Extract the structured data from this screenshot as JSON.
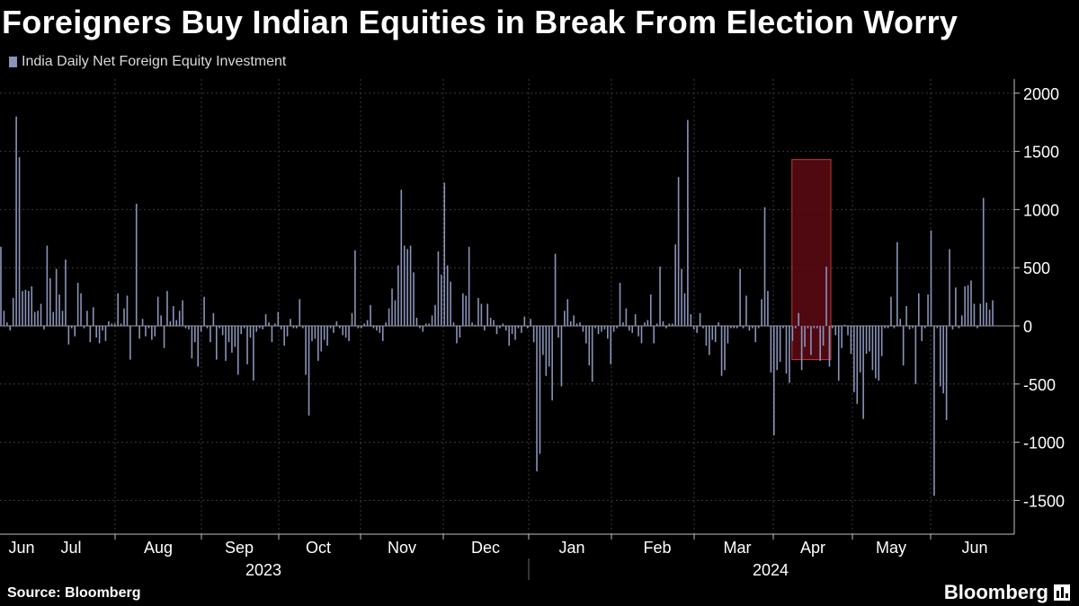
{
  "title": "Foreigners Buy Indian Equities in Break From Election Worry",
  "legend": {
    "label": "India Daily Net Foreign Equity Investment",
    "color": "#8a93b8"
  },
  "source": "Source: Bloomberg",
  "brand": "Bloomberg",
  "colors": {
    "bar": "#8a93b8",
    "highlight_fill": "#5e0a14",
    "highlight_stroke": "#c23a3a",
    "grid": "#3a3a3a",
    "axis": "#bfbfbf"
  },
  "chart_data": {
    "type": "bar",
    "title": "Foreigners Buy Indian Equities in Break From Election Worry",
    "series": [
      {
        "name": "India Daily Net Foreign Equity Investment"
      }
    ],
    "ylim": [
      -1650,
      2050
    ],
    "yticks": [
      2000,
      1500,
      1000,
      500,
      0,
      -500,
      -1000,
      -1500
    ],
    "ytick_labels": [
      "2000",
      "1500",
      "1000",
      "500",
      "0",
      "-500",
      "-1000",
      "-1500"
    ],
    "month_labels": [
      "Jun",
      "Jul",
      "Aug",
      "Sep",
      "Oct",
      "Nov",
      "Dec",
      "Jan",
      "Feb",
      "Mar",
      "Apr",
      "May",
      "Jun"
    ],
    "year_labels": [
      "2023",
      "2024"
    ],
    "highlight_range": {
      "start_index": 258,
      "end_index": 268,
      "ymin": -290,
      "ymax": 1430
    },
    "values": [
      680,
      130,
      30,
      -40,
      240,
      1800,
      1450,
      300,
      310,
      300,
      340,
      120,
      130,
      190,
      -30,
      690,
      410,
      120,
      490,
      270,
      130,
      570,
      -160,
      -20,
      -90,
      370,
      280,
      -20,
      130,
      -140,
      160,
      -100,
      -150,
      -40,
      -130,
      40,
      20,
      20,
      280,
      20,
      150,
      260,
      -290,
      0,
      1050,
      -110,
      60,
      -90,
      -20,
      -120,
      -90,
      250,
      90,
      -190,
      300,
      40,
      170,
      50,
      130,
      220,
      -20,
      -30,
      -280,
      -140,
      -350,
      -50,
      250,
      -20,
      -140,
      110,
      -290,
      -20,
      -80,
      -300,
      -140,
      -230,
      -180,
      -420,
      -70,
      -20,
      -330,
      -100,
      -470,
      -50,
      -20,
      -30,
      100,
      30,
      -140,
      20,
      120,
      -30,
      -170,
      -90,
      60,
      -20,
      -20,
      230,
      -20,
      -420,
      -770,
      -130,
      -110,
      -300,
      -220,
      -120,
      -170,
      -20,
      -60,
      40,
      -20,
      -80,
      -100,
      -130,
      110,
      650,
      -20,
      -20,
      20,
      50,
      180,
      -20,
      -40,
      -60,
      -130,
      30,
      150,
      320,
      220,
      520,
      1170,
      690,
      660,
      690,
      460,
      70,
      -20,
      -50,
      20,
      20,
      90,
      180,
      640,
      440,
      1230,
      520,
      380,
      30,
      -150,
      -100,
      280,
      260,
      680,
      30,
      10,
      240,
      190,
      -40,
      190,
      70,
      50,
      -70,
      -20,
      20,
      -40,
      -170,
      -70,
      -120,
      -20,
      -60,
      80,
      -20,
      60,
      -140,
      -1250,
      -1100,
      -250,
      -430,
      -350,
      -640,
      620,
      -100,
      -520,
      130,
      230,
      40,
      90,
      20,
      30,
      -50,
      -150,
      -340,
      -480,
      -20,
      -70,
      -50,
      -30,
      -110,
      -330,
      -50,
      -20,
      370,
      30,
      150,
      -40,
      -60,
      100,
      -90,
      -150,
      30,
      50,
      270,
      -150,
      20,
      510,
      40,
      -20,
      20,
      20,
      700,
      1280,
      490,
      280,
      1770,
      100,
      -30,
      -60,
      110,
      -20,
      -170,
      -250,
      -120,
      -140,
      30,
      -430,
      -380,
      -150,
      -20,
      -20,
      -20,
      490,
      -20,
      260,
      -40,
      -20,
      -140,
      -20,
      230,
      1020,
      300,
      -400,
      -940,
      -380,
      -310,
      -20,
      -410,
      -490,
      -130,
      -20,
      110,
      -380,
      -180,
      -20,
      -250,
      -20,
      -20,
      -300,
      -170,
      510,
      -350,
      -20,
      -80,
      -470,
      -190,
      10,
      -80,
      -240,
      -570,
      -670,
      -400,
      -800,
      -240,
      -220,
      -380,
      -450,
      -470,
      -260,
      -20,
      -20,
      250,
      -20,
      720,
      60,
      -340,
      170,
      -30,
      -20,
      -500,
      280,
      -130,
      -20,
      270,
      820,
      -1460,
      -20,
      -520,
      -580,
      -810,
      660,
      -30,
      330,
      -20,
      90,
      340,
      350,
      390,
      190,
      -20,
      190,
      1100,
      200,
      140,
      220
    ]
  }
}
